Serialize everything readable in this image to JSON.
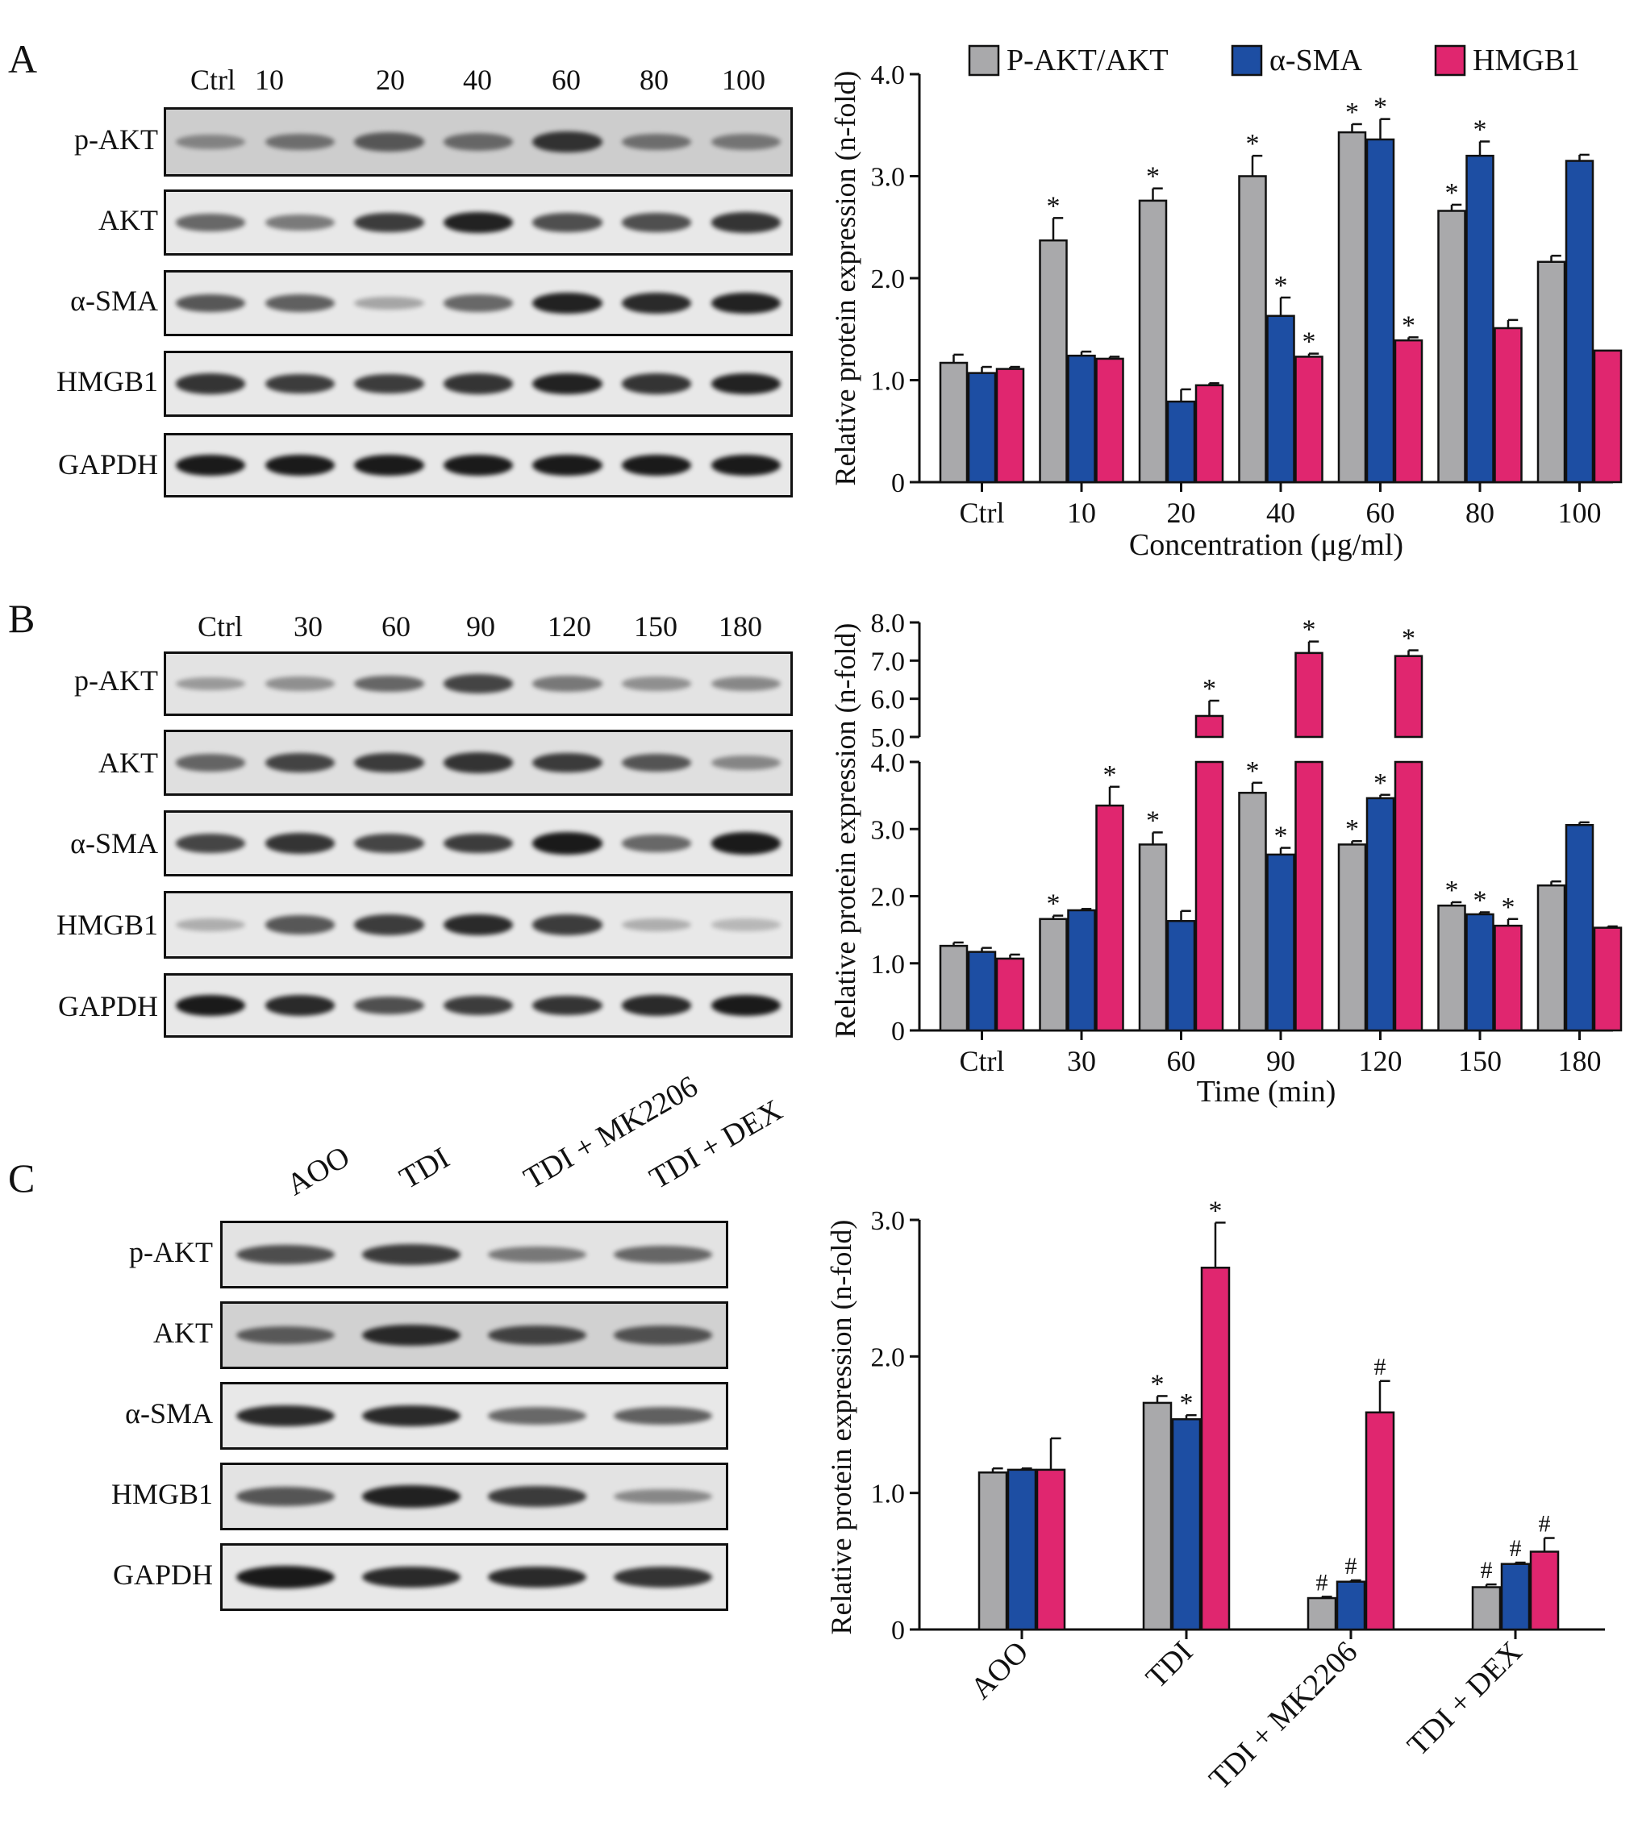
{
  "colors": {
    "p_akt": "#a9a9ab",
    "a_sma": "#1d4ea3",
    "hmgb1": "#e0266f",
    "band": "#1a1a1a",
    "background": "#ececec"
  },
  "panels": [
    {
      "label": "A",
      "columns": [
        "Ctrl",
        "10",
        "20",
        "40",
        "60",
        "80",
        "100"
      ],
      "rows": [
        {
          "label": "p-AKT",
          "intensities": [
            0.3,
            0.45,
            0.6,
            0.5,
            0.85,
            0.45,
            0.4
          ],
          "background": 0.35
        },
        {
          "label": "AKT",
          "intensities": [
            0.55,
            0.45,
            0.8,
            0.95,
            0.7,
            0.7,
            0.85
          ],
          "background": 0.05
        },
        {
          "label": "α-SMA",
          "intensities": [
            0.65,
            0.6,
            0.2,
            0.55,
            0.95,
            0.9,
            0.95
          ],
          "background": 0.05
        },
        {
          "label": "HMGB1",
          "intensities": [
            0.85,
            0.8,
            0.8,
            0.85,
            0.95,
            0.85,
            0.95
          ],
          "background": 0.05
        },
        {
          "label": "GAPDH",
          "intensities": [
            1,
            1,
            1,
            1,
            1,
            1,
            1
          ],
          "background": 0.05
        }
      ]
    },
    {
      "label": "B",
      "columns": [
        "Ctrl",
        "30",
        "60",
        "90",
        "120",
        "150",
        "180"
      ],
      "rows": [
        {
          "label": "p-AKT",
          "intensities": [
            0.25,
            0.3,
            0.55,
            0.75,
            0.45,
            0.3,
            0.35
          ],
          "background": 0.1
        },
        {
          "label": "AKT",
          "intensities": [
            0.55,
            0.75,
            0.8,
            0.85,
            0.8,
            0.65,
            0.35
          ],
          "background": 0.15
        },
        {
          "label": "α-SMA",
          "intensities": [
            0.75,
            0.85,
            0.75,
            0.8,
            1.0,
            0.55,
            1.0
          ],
          "background": 0.05
        },
        {
          "label": "HMGB1",
          "intensities": [
            0.15,
            0.65,
            0.8,
            0.9,
            0.8,
            0.15,
            0.1
          ],
          "background": 0.05
        },
        {
          "label": "GAPDH",
          "intensities": [
            1,
            0.9,
            0.7,
            0.8,
            0.85,
            0.9,
            1
          ],
          "background": 0.05
        }
      ]
    },
    {
      "label": "C",
      "columns": [
        "AOO",
        "TDI",
        "TDI + MK2206",
        "TDI + DEX"
      ],
      "rows": [
        {
          "label": "p-AKT",
          "intensities": [
            0.7,
            0.8,
            0.45,
            0.55
          ],
          "background": 0.1
        },
        {
          "label": "AKT",
          "intensities": [
            0.6,
            0.9,
            0.75,
            0.65
          ],
          "background": 0.3
        },
        {
          "label": "α-SMA",
          "intensities": [
            0.9,
            0.9,
            0.55,
            0.6
          ],
          "background": 0.05
        },
        {
          "label": "HMGB1",
          "intensities": [
            0.65,
            0.95,
            0.8,
            0.35
          ],
          "background": 0.1
        },
        {
          "label": "GAPDH",
          "intensities": [
            1,
            0.9,
            0.9,
            0.85
          ],
          "background": 0.05
        }
      ]
    }
  ],
  "chart_data": [
    {
      "type": "bar",
      "panel": "A",
      "categories": [
        "Ctrl",
        "10",
        "20",
        "40",
        "60",
        "80",
        "100"
      ],
      "series": [
        {
          "name": "P-AKT/AKT",
          "values": [
            1.17,
            2.37,
            2.76,
            3.0,
            3.43,
            2.66,
            2.16
          ],
          "errors": [
            0.08,
            0.22,
            0.12,
            0.2,
            0.08,
            0.06,
            0.06
          ],
          "marks": [
            "",
            "*",
            "*",
            "*",
            "*",
            "*",
            ""
          ]
        },
        {
          "name": "α-SMA",
          "values": [
            1.07,
            1.24,
            0.79,
            1.63,
            3.36,
            3.2,
            3.15
          ],
          "errors": [
            0.06,
            0.04,
            0.12,
            0.18,
            0.2,
            0.14,
            0.06
          ],
          "marks": [
            "",
            "",
            "",
            "*",
            "*",
            "*",
            ""
          ]
        },
        {
          "name": "HMGB1",
          "values": [
            1.11,
            1.21,
            0.95,
            1.23,
            1.39,
            1.51,
            1.29
          ],
          "errors": [
            0.02,
            0.02,
            0.02,
            0.03,
            0.03,
            0.08,
            0.0
          ],
          "marks": [
            "",
            "",
            "",
            "*",
            "*",
            "",
            ""
          ]
        }
      ],
      "xlabel": "Concentration (μg/ml)",
      "ylabel": "Relative protein expression (n-fold)",
      "ylim": [
        0,
        4.0
      ],
      "yticks": [
        "0",
        "1.0",
        "2.0",
        "3.0",
        "4.0"
      ],
      "legend": "top"
    },
    {
      "type": "bar",
      "panel": "B",
      "categories": [
        "Ctrl",
        "30",
        "60",
        "90",
        "120",
        "150",
        "180"
      ],
      "series": [
        {
          "name": "P-AKT/AKT",
          "values": [
            1.26,
            1.66,
            2.77,
            3.54,
            2.77,
            1.86,
            2.16
          ],
          "errors": [
            0.05,
            0.05,
            0.18,
            0.15,
            0.05,
            0.05,
            0.06
          ],
          "marks": [
            "",
            "*",
            "*",
            "*",
            "*",
            "*",
            ""
          ]
        },
        {
          "name": "α-SMA",
          "values": [
            1.17,
            1.79,
            1.63,
            2.62,
            3.46,
            1.73,
            3.06
          ],
          "errors": [
            0.06,
            0.02,
            0.15,
            0.1,
            0.05,
            0.03,
            0.04
          ],
          "marks": [
            "",
            "",
            "",
            "*",
            "*",
            "*",
            ""
          ]
        },
        {
          "name": "HMGB1",
          "values": [
            1.07,
            3.35,
            5.55,
            7.2,
            7.12,
            1.56,
            1.53
          ],
          "errors": [
            0.06,
            0.28,
            0.4,
            0.3,
            0.15,
            0.1,
            0.02
          ],
          "marks": [
            "",
            "*",
            "*",
            "*",
            "*",
            "*",
            ""
          ]
        }
      ],
      "xlabel": "Time (min)",
      "ylabel": "Relative protein expression (n-fold)",
      "ylim": [
        0,
        8.0
      ],
      "axis_break": [
        4.0,
        5.0
      ],
      "yticks_lower": [
        "0",
        "1.0",
        "2.0",
        "3.0",
        "4.0"
      ],
      "yticks_upper": [
        "5.0",
        "6.0",
        "7.0",
        "8.0"
      ]
    },
    {
      "type": "bar",
      "panel": "C",
      "categories": [
        "AOO",
        "TDI",
        "TDI + MK2206",
        "TDI + DEX"
      ],
      "series": [
        {
          "name": "P-AKT/AKT",
          "values": [
            1.15,
            1.66,
            0.23,
            0.31
          ],
          "errors": [
            0.03,
            0.05,
            0.01,
            0.02
          ],
          "marks": [
            "",
            "*",
            "#",
            "#"
          ]
        },
        {
          "name": "α-SMA",
          "values": [
            1.17,
            1.54,
            0.35,
            0.48
          ],
          "errors": [
            0.01,
            0.03,
            0.01,
            0.01
          ],
          "marks": [
            "",
            "*",
            "#",
            "#"
          ]
        },
        {
          "name": "HMGB1",
          "values": [
            1.17,
            2.65,
            1.59,
            0.57
          ],
          "errors": [
            0.23,
            0.33,
            0.23,
            0.1
          ],
          "marks": [
            "",
            "*",
            "#",
            "#"
          ]
        }
      ],
      "xlabel": "",
      "ylabel": "Relative protein expression (n-fold)",
      "ylim": [
        0,
        3.0
      ],
      "yticks": [
        "0",
        "1.0",
        "2.0",
        "3.0"
      ]
    }
  ]
}
